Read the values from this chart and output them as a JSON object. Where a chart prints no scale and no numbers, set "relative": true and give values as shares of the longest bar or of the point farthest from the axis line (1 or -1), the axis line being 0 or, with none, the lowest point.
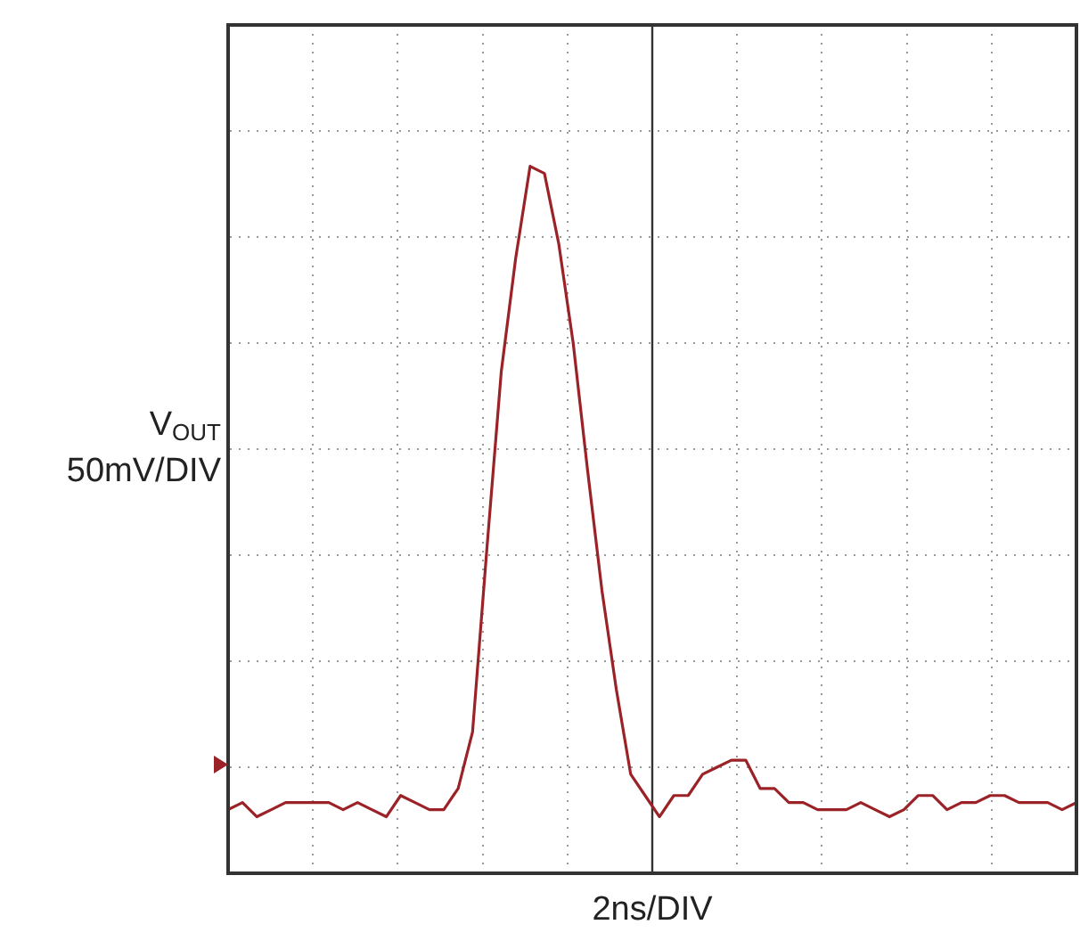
{
  "chart_data": {
    "type": "line",
    "relative": true,
    "xlabel": "2ns/DIV",
    "ylabel": "V$_{OUT}$ 50mV/DIV",
    "grid": true,
    "legend": false,
    "marker": "none",
    "line_style": "solid",
    "categories": [
      null,
      null,
      null,
      null,
      null,
      null,
      null,
      null,
      null,
      null,
      null,
      null,
      null,
      null,
      null,
      null,
      null,
      null,
      null,
      null,
      null,
      null,
      null,
      null,
      null,
      null,
      null,
      null,
      null,
      null,
      null,
      null,
      null,
      null,
      null,
      null,
      null,
      null,
      null,
      null,
      null,
      null,
      null,
      null,
      null,
      null,
      null,
      null,
      null,
      null,
      null,
      null,
      null,
      null,
      null,
      null,
      null,
      null,
      null,
      null
    ],
    "series": [
      {
        "color": "#9b2226",
        "values": [
          0.09,
          0.1,
          0.08,
          0.09,
          0.1,
          0.1,
          0.1,
          0.1,
          0.09,
          0.1,
          0.09,
          0.08,
          0.11,
          0.1,
          0.09,
          0.09,
          0.12,
          0.2,
          0.46,
          0.71,
          0.87,
          1,
          0.99,
          0.89,
          0.75,
          0.57,
          0.4,
          0.26,
          0.14,
          0.11,
          0.08,
          0.11,
          0.11,
          0.14,
          0.15,
          0.16,
          0.16,
          0.12,
          0.12,
          0.1,
          0.1,
          0.09,
          0.09,
          0.09,
          0.1,
          0.09,
          0.08,
          0.09,
          0.11,
          0.11,
          0.09,
          0.1,
          0.1,
          0.11,
          0.11,
          0.1,
          0.1,
          0.1,
          0.09,
          0.1
        ]
      }
    ]
  }
}
